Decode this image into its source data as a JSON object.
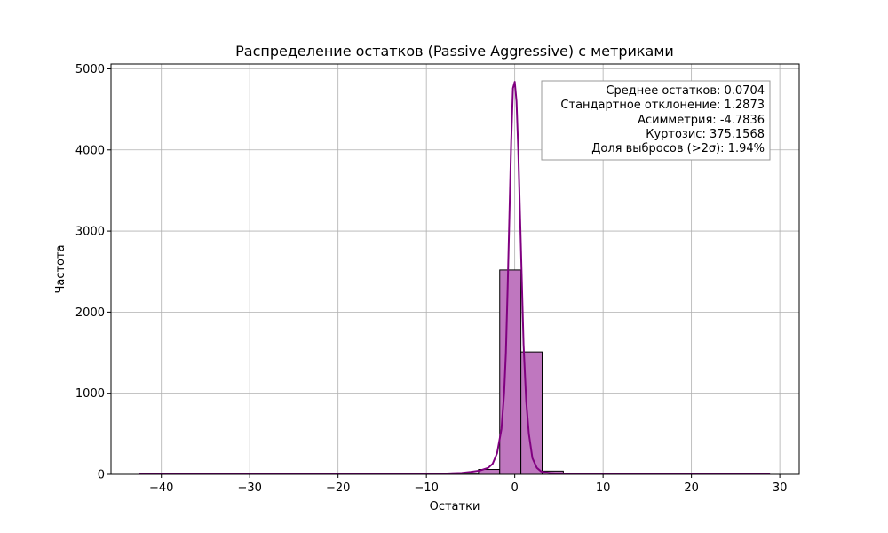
{
  "chart_data": {
    "type": "bar",
    "title": "Распределение остатков (Passive Aggressive) с метриками",
    "xlabel": "Остатки",
    "ylabel": "Частота",
    "xlim": [
      -45.7,
      32.2
    ],
    "ylim": [
      0,
      5060
    ],
    "grid": true,
    "x_ticks": [
      -40,
      -30,
      -20,
      -10,
      0,
      10,
      20,
      30
    ],
    "x_tick_labels": [
      "−40",
      "−30",
      "−20",
      "−10",
      "0",
      "10",
      "20",
      "30"
    ],
    "y_ticks": [
      0,
      1000,
      2000,
      3000,
      4000,
      5000
    ],
    "y_tick_labels": [
      "0",
      "1000",
      "2000",
      "3000",
      "4000",
      "5000"
    ],
    "bar_color": "#bf77bf",
    "bar_edge_color": "#000000",
    "line_color": "#800080",
    "histogram": {
      "bin_edges": [
        -42.5,
        -40.1,
        -37.7,
        -35.3,
        -32.9,
        -30.5,
        -28.1,
        -25.7,
        -23.3,
        -20.9,
        -18.5,
        -16.1,
        -13.7,
        -11.3,
        -8.9,
        -6.5,
        -4.1,
        -1.7,
        0.7,
        3.1,
        5.5,
        7.9,
        10.3,
        12.7,
        15.1,
        17.5,
        19.9,
        22.3,
        24.7,
        27.1,
        29.5
      ],
      "counts": [
        2,
        0,
        0,
        0,
        0,
        0,
        0,
        0,
        0,
        0,
        0,
        0,
        0,
        0,
        1,
        4,
        60,
        2520,
        1510,
        40,
        3,
        1,
        0,
        0,
        0,
        0,
        0,
        0,
        2,
        0
      ]
    },
    "kde": {
      "x": [
        -42.5,
        -35,
        -25,
        -15,
        -10,
        -8,
        -6,
        -5,
        -4,
        -3,
        -2.5,
        -2,
        -1.5,
        -1.2,
        -1,
        -0.8,
        -0.6,
        -0.4,
        -0.2,
        0,
        0.2,
        0.4,
        0.6,
        0.8,
        1,
        1.3,
        1.6,
        2,
        2.5,
        3,
        4,
        5,
        7,
        10,
        15,
        20,
        24,
        28.9
      ],
      "y": [
        5,
        5,
        5,
        5,
        6,
        10,
        18,
        30,
        45,
        80,
        130,
        260,
        560,
        1000,
        1500,
        2300,
        3200,
        4100,
        4760,
        4840,
        4600,
        4000,
        3200,
        2400,
        1600,
        900,
        500,
        200,
        80,
        35,
        15,
        8,
        5,
        5,
        5,
        5,
        8,
        5
      ]
    },
    "stats_box": {
      "lines": [
        "Среднее остатков: 0.0704",
        "Стандартное отклонение: 1.2873",
        "Асимметрия: -4.7836",
        "Куртозис: 375.1568",
        "Доля выбросов (>2σ): 1.94%"
      ],
      "placement": "top-right"
    }
  }
}
